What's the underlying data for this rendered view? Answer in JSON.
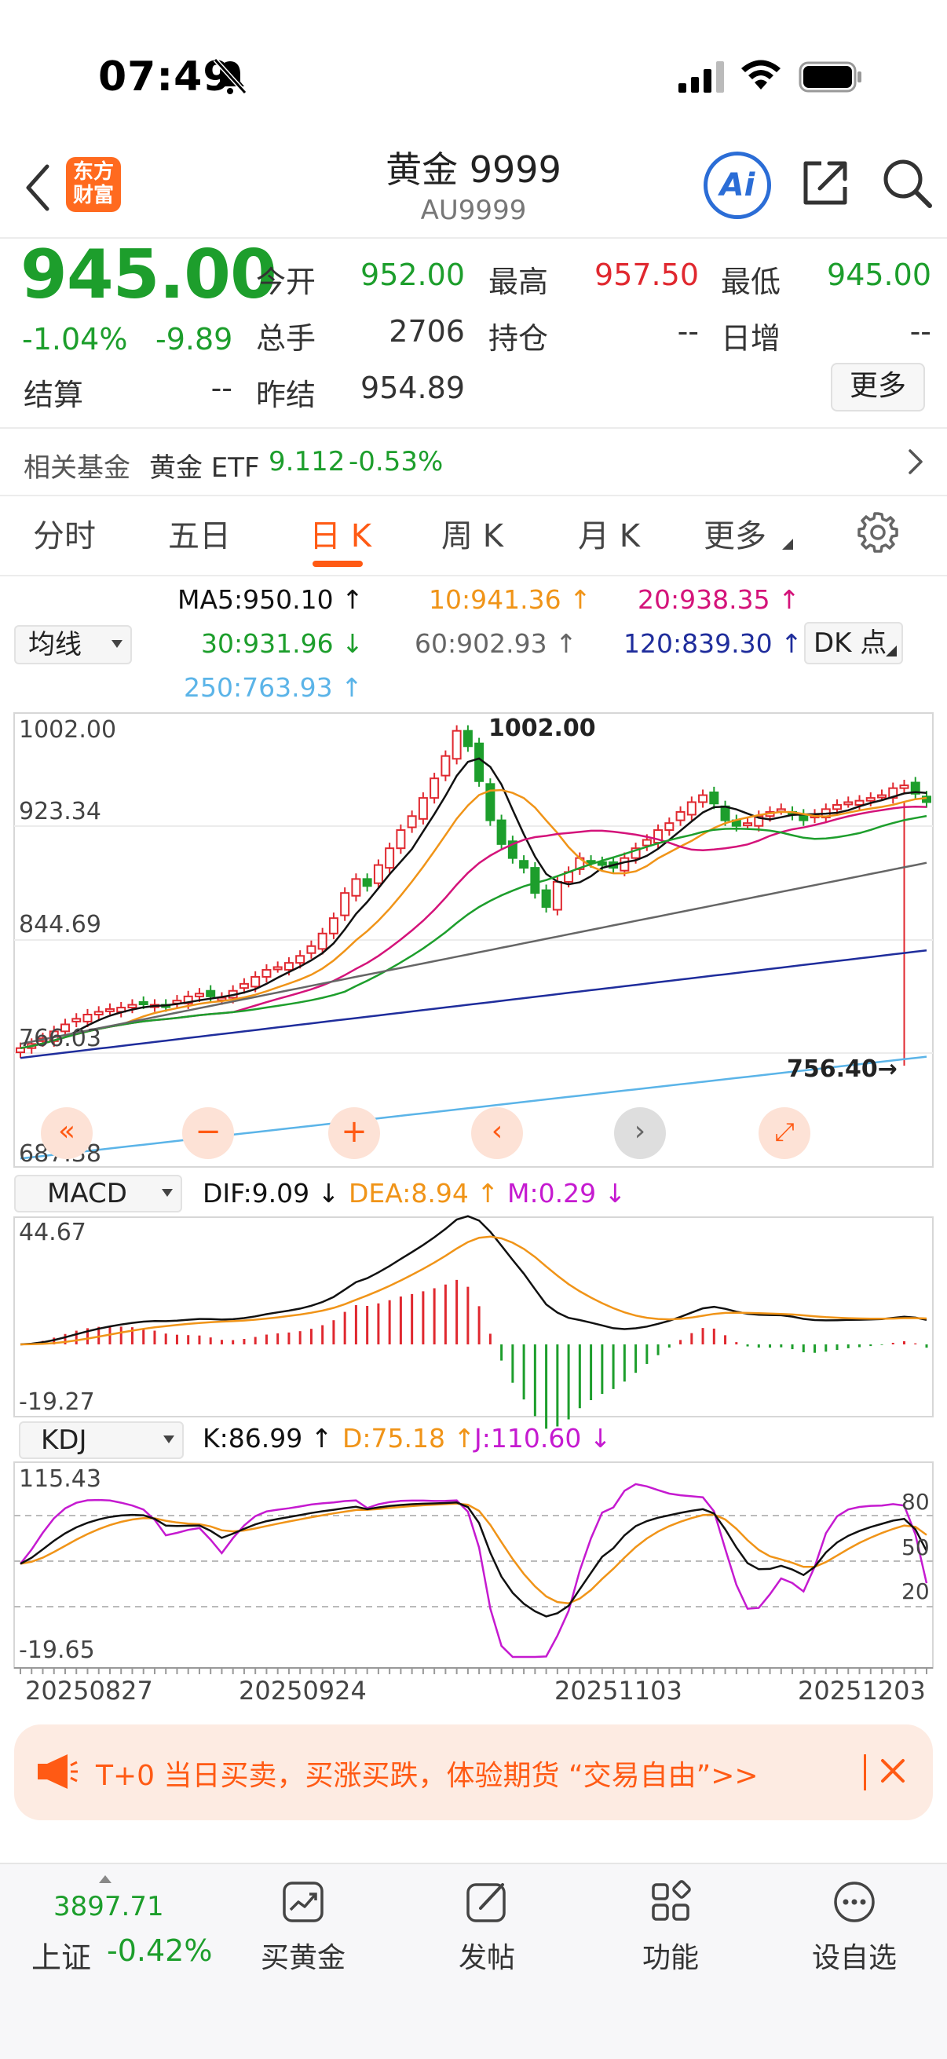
{
  "status": {
    "time": "07:49"
  },
  "header": {
    "title": "黄金 9999",
    "subtitle": "AU9999",
    "logo": "东方\n财富",
    "ai_label": "Ai"
  },
  "quote": {
    "price": "945.00",
    "change_pct": "-1.04%",
    "change": "-9.89",
    "open_label": "今开",
    "open": "952.00",
    "high_label": "最高",
    "high": "957.50",
    "low_label": "最低",
    "low": "945.00",
    "volume_label": "总手",
    "volume": "2706",
    "position_label": "持仓",
    "position": "--",
    "daily_inc_label": "日增",
    "daily_inc": "--",
    "settle_label": "结算",
    "settle": "--",
    "prev_settle_label": "昨结",
    "prev_settle": "954.89",
    "more_label": "更多"
  },
  "fund": {
    "label": "相关基金",
    "name": "黄金 ETF",
    "price": "9.112",
    "pct": "-0.53%"
  },
  "tabs": [
    "分时",
    "五日",
    "日 K",
    "周 K",
    "月 K",
    "更多"
  ],
  "active_tab": 2,
  "ma": {
    "selector": "均线",
    "ma5": "MA5:950.10 ↑",
    "ma10": "10:941.36 ↑",
    "ma20": "20:938.35 ↑",
    "ma30": "30:931.96 ↓",
    "ma60": "60:902.93 ↑",
    "ma120": "120:839.30 ↑",
    "ma250": "250:763.93 ↑",
    "dk_label": "DK 点"
  },
  "price_axis": [
    "1002.00",
    "923.34",
    "844.69",
    "766.03",
    "687.38"
  ],
  "annotations": {
    "high": "1002.00",
    "low": "756.40→"
  },
  "macd": {
    "selector": "MACD",
    "dif": "DIF:9.09 ↓",
    "dea": "DEA:8.94 ↑",
    "m": "M:0.29 ↓",
    "axis_top": "44.67",
    "axis_bottom": "-19.27"
  },
  "kdj": {
    "selector": "KDJ",
    "k": "K:86.99 ↑",
    "d": "D:75.18 ↑",
    "j": "J:110.60 ↓",
    "axis_top": "115.43",
    "axis_bottom": "-19.65",
    "levels": [
      "80",
      "50",
      "20"
    ]
  },
  "dates": [
    "20250827",
    "20250924",
    "20251103",
    "20251203"
  ],
  "chart_data": {
    "type": "candlestick",
    "title": "黄金 9999 日K",
    "ylim": [
      687.38,
      1002.0
    ],
    "closes": [
      769,
      772,
      776,
      781,
      786,
      790,
      793,
      795,
      797,
      798,
      800,
      801,
      800,
      799,
      803,
      806,
      808,
      806,
      805,
      810,
      815,
      820,
      825,
      827,
      830,
      835,
      842,
      851,
      862,
      880,
      890,
      885,
      900,
      912,
      925,
      935,
      948,
      962,
      978,
      996,
      985,
      960,
      932,
      915,
      905,
      898,
      880,
      870,
      888,
      895,
      905,
      902,
      900,
      898,
      905,
      912,
      918,
      925,
      930,
      938,
      945,
      950,
      944,
      932,
      928,
      930,
      935,
      938,
      940,
      936,
      932,
      936,
      940,
      943,
      945,
      946,
      948,
      950,
      955,
      957,
      951,
      945
    ],
    "lows": {
      "annotated_low": 756.4
    },
    "highs": {
      "annotated_high": 1002.0
    }
  },
  "promo": {
    "text": "T+0 当日买卖，买涨买跌，体验期货 “交易自由”>>"
  },
  "bottom": {
    "index_value": "3897.71",
    "index_name": "上证",
    "index_pct": "-0.42%",
    "items": [
      "买黄金",
      "发帖",
      "功能",
      "设自选"
    ]
  },
  "colors": {
    "up": "#e0282f",
    "down": "#1d9e2c",
    "accent": "#ff5a14"
  }
}
